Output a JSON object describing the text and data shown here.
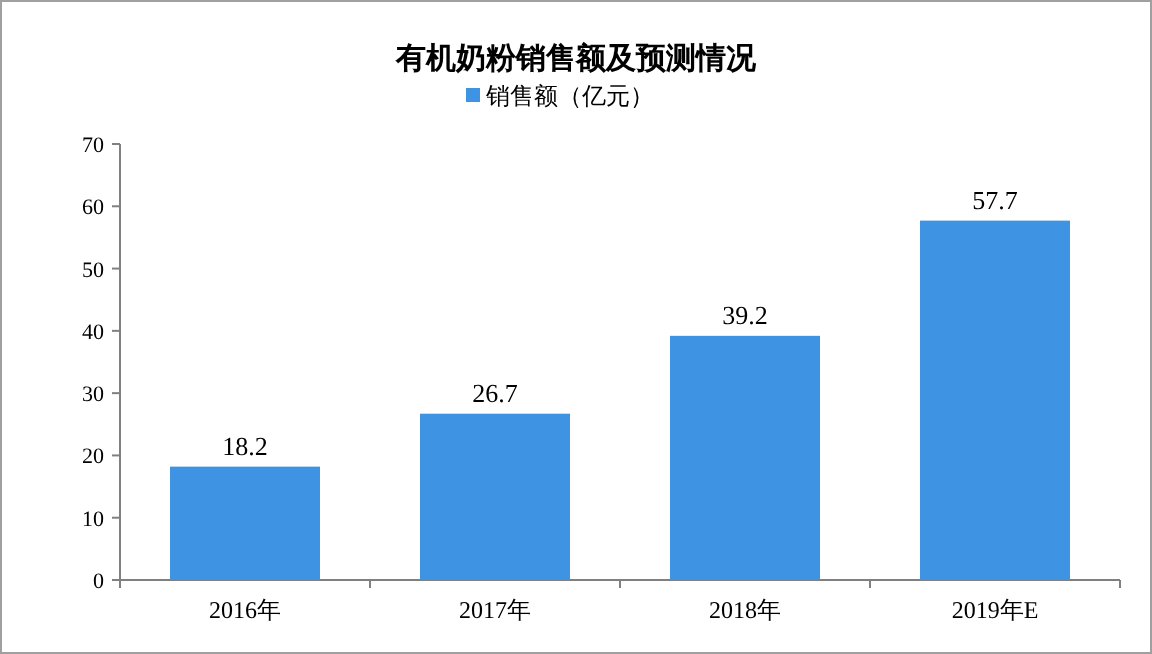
{
  "chart_data": {
    "type": "bar",
    "title": "有机奶粉销售额及预测情况",
    "categories": [
      "2016年",
      "2017年",
      "2018年",
      "2019年E"
    ],
    "series": [
      {
        "name": "销售额（亿元）",
        "color": "#3f93e3",
        "values": [
          18.2,
          26.7,
          39.2,
          57.7
        ]
      }
    ],
    "ylim": [
      0,
      70
    ],
    "yticks": [
      0,
      10,
      20,
      30,
      40,
      50,
      60,
      70
    ],
    "data_labels": true,
    "legend": "top",
    "grid": false
  }
}
